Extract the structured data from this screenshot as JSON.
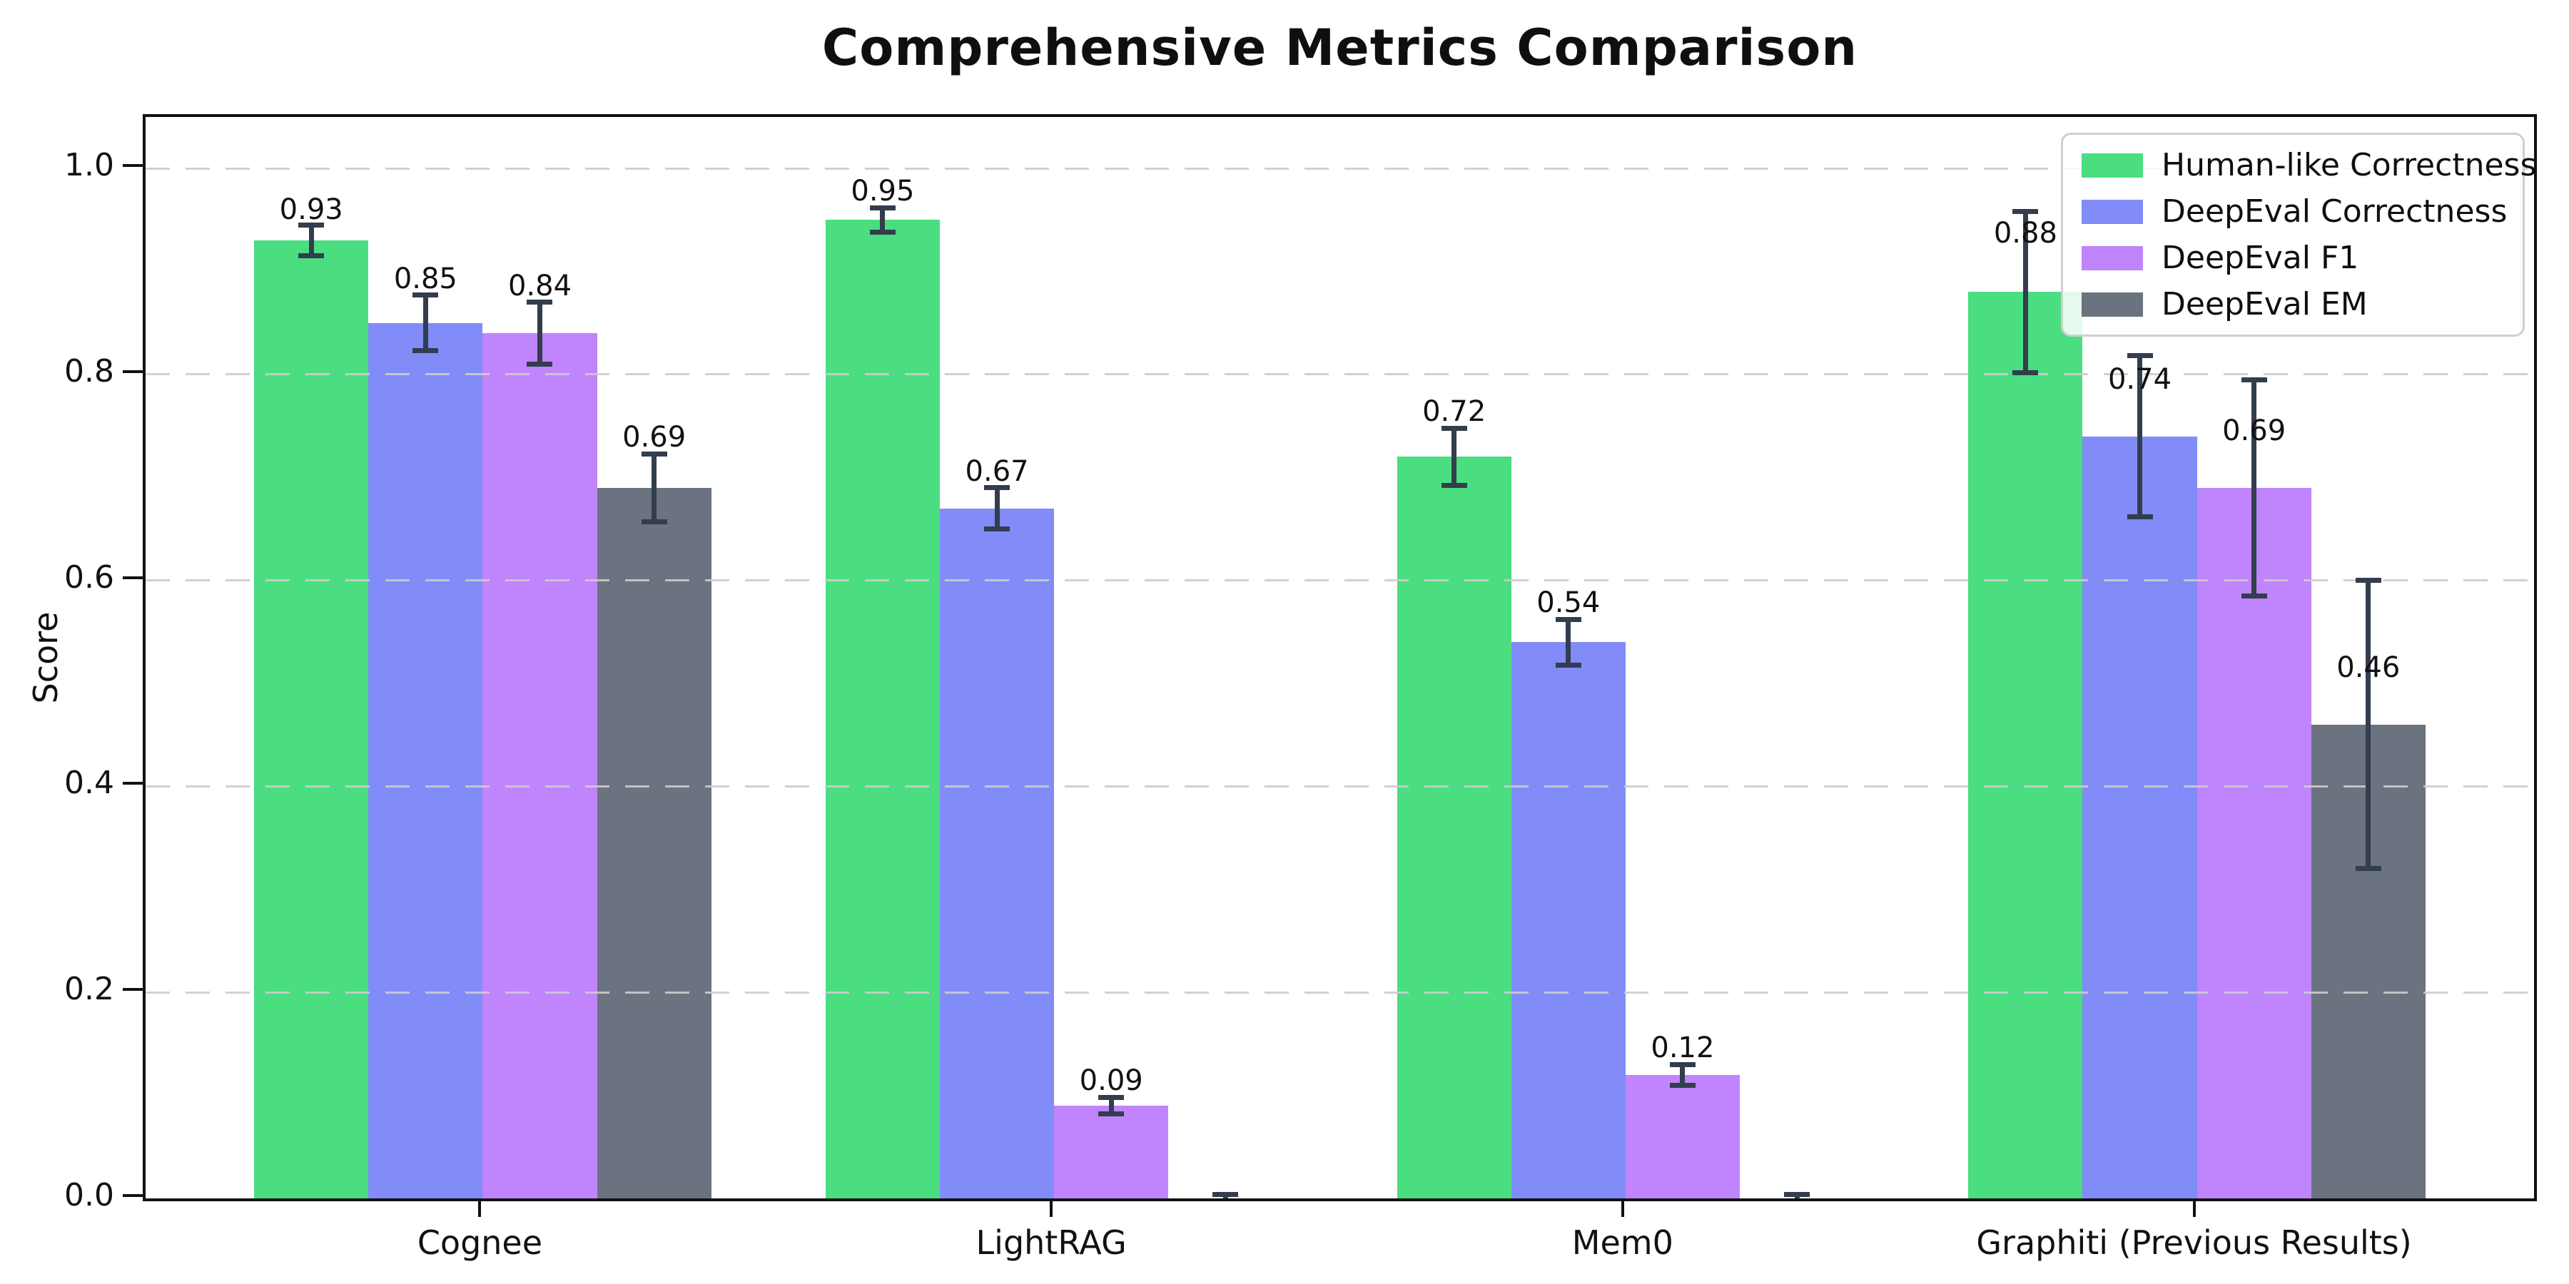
{
  "title": "Comprehensive Metrics Comparison",
  "ylabel": "Score",
  "chart_data": {
    "type": "bar",
    "title": "Comprehensive Metrics Comparison",
    "xlabel": "",
    "ylabel": "Score",
    "categories": [
      "Cognee",
      "LightRAG",
      "Mem0",
      "Graphiti (Previous Results)"
    ],
    "series": [
      {
        "name": "Human-like Correctness",
        "color": "#4ade80",
        "values": [
          0.93,
          0.95,
          0.72,
          0.88
        ],
        "errors": [
          0.015,
          0.012,
          0.028,
          0.078
        ],
        "label_offsets": [
          0.03,
          0.028,
          0.044,
          0.057
        ]
      },
      {
        "name": "DeepEval Correctness",
        "color": "#818cf8",
        "values": [
          0.85,
          0.67,
          0.54,
          0.74
        ],
        "errors": [
          0.027,
          0.02,
          0.022,
          0.078
        ],
        "label_offsets": [
          0.043,
          0.036,
          0.038,
          0.055
        ]
      },
      {
        "name": "DeepEval F1",
        "color": "#c084fc",
        "values": [
          0.84,
          0.09,
          0.12,
          0.69
        ],
        "errors": [
          0.03,
          0.008,
          0.01,
          0.105
        ],
        "label_offsets": [
          0.046,
          0.024,
          0.026,
          0.055
        ]
      },
      {
        "name": "DeepEval EM",
        "color": "#6b7280",
        "values": [
          0.69,
          0.0,
          0.0,
          0.46
        ],
        "errors": [
          0.033,
          0.004,
          0.004,
          0.14
        ],
        "label_offsets": [
          0.049,
          null,
          null,
          0.055
        ]
      }
    ],
    "ylim": [
      0,
      1.05
    ],
    "yticks": [
      0.0,
      0.2,
      0.4,
      0.6,
      0.8,
      1.0
    ],
    "grid": "dashed-horizontal-above-bars",
    "legend_position": "upper right",
    "bar_value_labels": true,
    "bar_width_data_units": 0.2,
    "xlim": [
      -0.59,
      3.59
    ]
  },
  "styles": {
    "error_bar_color": "#323d4d",
    "grid_color": "#cccccc",
    "spine_color": "#111111",
    "legend_border_color": "#cfcfcf",
    "background_color": "#ffffff",
    "text_color": "#111111"
  }
}
